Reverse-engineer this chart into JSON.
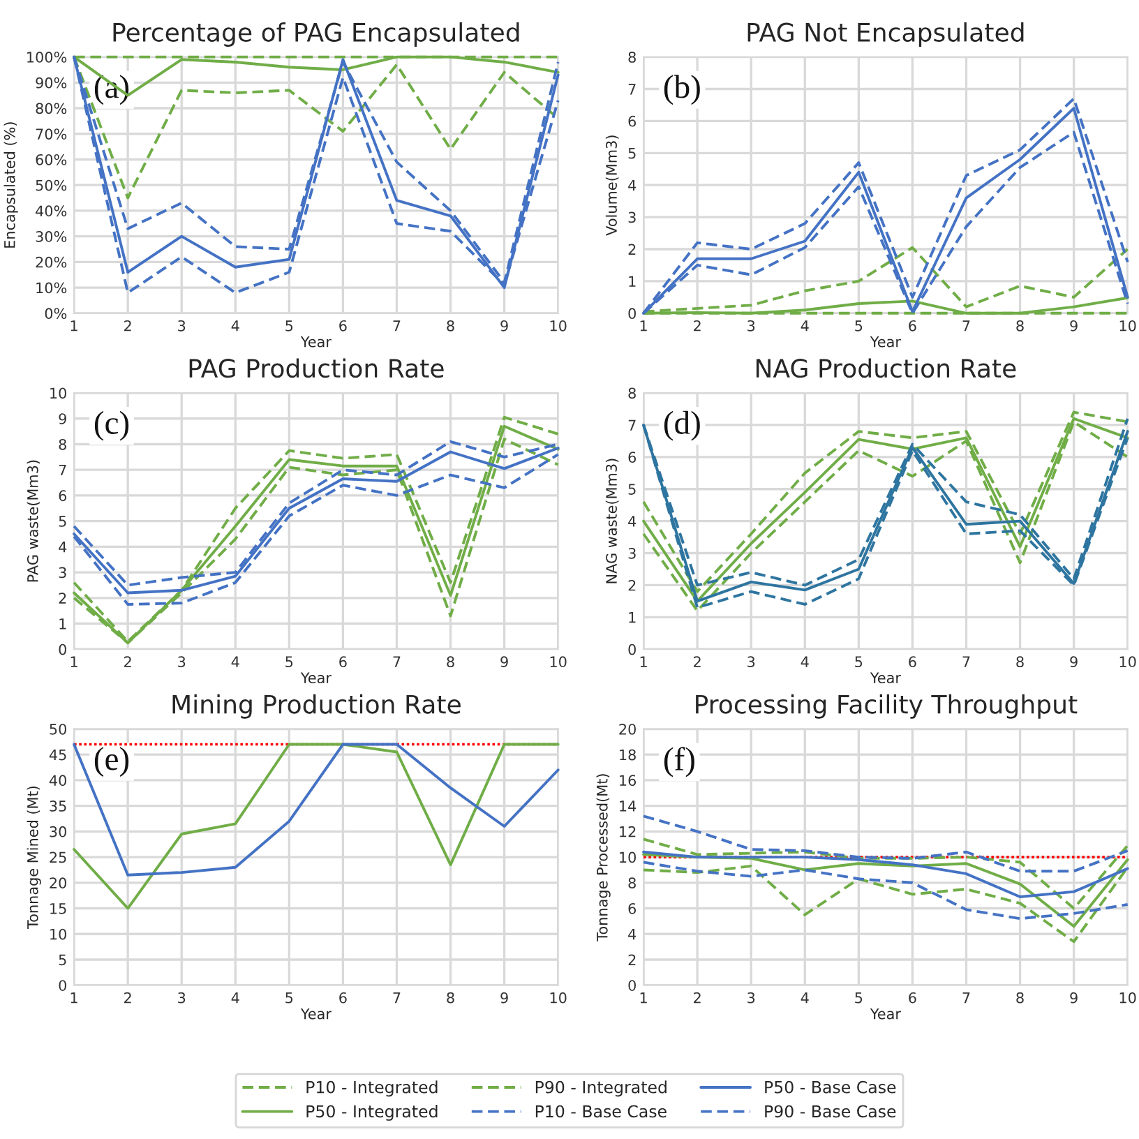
{
  "chart_data": [
    {
      "type": "line",
      "title": "Percentage of PAG Encapsulated",
      "xlabel": "Year",
      "ylabel": "Encapsulated (%)",
      "annotations": [
        "(a)"
      ],
      "x": [
        1,
        2,
        3,
        4,
        5,
        6,
        7,
        8,
        9,
        10
      ],
      "xlim": [
        1,
        10
      ],
      "xticks": [
        1,
        2,
        3,
        4,
        5,
        6,
        7,
        8,
        9,
        10
      ],
      "ylim": [
        0,
        100
      ],
      "yticks": [
        {
          "value": 0,
          "label": "0%"
        },
        {
          "value": 10,
          "label": "10%"
        },
        {
          "value": 20,
          "label": "20%"
        },
        {
          "value": 30,
          "label": "30%"
        },
        {
          "value": 40,
          "label": "40%"
        },
        {
          "value": 50,
          "label": "50%"
        },
        {
          "value": 60,
          "label": "60%"
        },
        {
          "value": 70,
          "label": "70%"
        },
        {
          "value": 80,
          "label": "80%"
        },
        {
          "value": 90,
          "label": "90%"
        },
        {
          "value": 100,
          "label": "100%"
        }
      ],
      "grid": true,
      "legend": "bottom",
      "series": [
        {
          "name": "P10 - Integrated",
          "color": "#70ad47",
          "line_style": "dashed",
          "values": [
            100,
            45,
            87,
            86,
            87,
            71,
            97,
            64,
            94,
            76
          ]
        },
        {
          "name": "P50 - Integrated",
          "color": "#70ad47",
          "line_style": "solid",
          "values": [
            100,
            85,
            99,
            98,
            96,
            95,
            100,
            100,
            98,
            94
          ]
        },
        {
          "name": "P90 - Integrated",
          "color": "#70ad47",
          "line_style": "dashed",
          "values": [
            100,
            100,
            100,
            100,
            100,
            100,
            100,
            100,
            100,
            100
          ]
        },
        {
          "name": "P10 - Base Case",
          "color": "#4472c4",
          "line_style": "dashed",
          "values": [
            100,
            8,
            22,
            8,
            16,
            92,
            35,
            32,
            11,
            83
          ]
        },
        {
          "name": "P50 - Base Case",
          "color": "#4472c4",
          "line_style": "solid",
          "values": [
            100,
            16,
            30,
            18,
            21,
            99,
            44,
            38,
            10,
            93
          ]
        },
        {
          "name": "P90 - Base Case",
          "color": "#4472c4",
          "line_style": "dashed",
          "values": [
            100,
            33,
            43,
            26,
            25,
            98,
            59,
            40,
            12,
            98
          ]
        }
      ]
    },
    {
      "type": "line",
      "title": "PAG Not Encapsulated",
      "xlabel": "Year",
      "ylabel": "Volume(Mm3)",
      "annotations": [
        "(b)"
      ],
      "x": [
        1,
        2,
        3,
        4,
        5,
        6,
        7,
        8,
        9,
        10
      ],
      "xlim": [
        1,
        10
      ],
      "xticks": [
        1,
        2,
        3,
        4,
        5,
        6,
        7,
        8,
        9,
        10
      ],
      "ylim": [
        0,
        8
      ],
      "yticks": [
        0,
        1,
        2,
        3,
        4,
        5,
        6,
        7,
        8
      ],
      "grid": true,
      "series": [
        {
          "color": "#70ad47",
          "line_style": "dashed",
          "values": [
            0.05,
            0.15,
            0.25,
            0.7,
            1.0,
            2.05,
            0.2,
            0.85,
            0.5,
            2.0
          ]
        },
        {
          "color": "#70ad47",
          "line_style": "solid",
          "values": [
            0,
            0.02,
            0,
            0.1,
            0.3,
            0.38,
            0,
            0,
            0.2,
            0.48
          ]
        },
        {
          "color": "#70ad47",
          "line_style": "dashed",
          "values": [
            0,
            0,
            0,
            0,
            0,
            0,
            0,
            0,
            0,
            0
          ]
        },
        {
          "color": "#4472c4",
          "line_style": "dashed",
          "values": [
            0,
            2.2,
            2.0,
            2.8,
            4.7,
            0.5,
            4.3,
            5.1,
            6.7,
            1.6
          ]
        },
        {
          "color": "#4472c4",
          "line_style": "solid",
          "values": [
            0,
            1.7,
            1.7,
            2.25,
            4.4,
            0.05,
            3.6,
            4.8,
            6.4,
            0.5
          ]
        },
        {
          "color": "#4472c4",
          "line_style": "dashed",
          "values": [
            0,
            1.5,
            1.2,
            2.05,
            3.95,
            0,
            2.7,
            4.55,
            5.65,
            0.3
          ]
        }
      ]
    },
    {
      "type": "line",
      "title": "PAG Production Rate",
      "xlabel": "Year",
      "ylabel": "PAG waste(Mm3)",
      "annotations": [
        "(c)"
      ],
      "x": [
        1,
        2,
        3,
        4,
        5,
        6,
        7,
        8,
        9,
        10
      ],
      "xlim": [
        1,
        10
      ],
      "xticks": [
        1,
        2,
        3,
        4,
        5,
        6,
        7,
        8,
        9,
        10
      ],
      "ylim": [
        0,
        10
      ],
      "yticks": [
        0,
        1,
        2,
        3,
        4,
        5,
        6,
        7,
        8,
        9,
        10
      ],
      "grid": true,
      "series": [
        {
          "color": "#70ad47",
          "line_style": "dashed",
          "values": [
            2.6,
            0.3,
            2.3,
            5.5,
            7.75,
            7.45,
            7.6,
            2.6,
            9.05,
            8.4
          ]
        },
        {
          "color": "#70ad47",
          "line_style": "solid",
          "values": [
            2.2,
            0.25,
            2.3,
            4.8,
            7.4,
            7.15,
            7.15,
            2.1,
            8.7,
            7.8
          ]
        },
        {
          "color": "#70ad47",
          "line_style": "dashed",
          "values": [
            2.0,
            0.25,
            2.2,
            4.3,
            7.1,
            6.8,
            7.0,
            1.3,
            8.2,
            7.2
          ]
        },
        {
          "color": "#4472c4",
          "line_style": "dashed",
          "values": [
            4.8,
            2.5,
            2.8,
            3.0,
            5.7,
            7.0,
            6.8,
            8.1,
            7.5,
            8.0
          ]
        },
        {
          "color": "#4472c4",
          "line_style": "solid",
          "values": [
            4.5,
            2.2,
            2.3,
            2.85,
            5.5,
            6.65,
            6.55,
            7.7,
            7.05,
            7.85
          ]
        },
        {
          "color": "#4472c4",
          "line_style": "dashed",
          "values": [
            4.4,
            1.75,
            1.8,
            2.6,
            5.2,
            6.4,
            6.0,
            6.8,
            6.3,
            7.6
          ]
        }
      ]
    },
    {
      "type": "line",
      "title": "NAG Production Rate",
      "xlabel": "Year",
      "ylabel": "NAG waste(Mm3)",
      "annotations": [
        "(d)"
      ],
      "x": [
        1,
        2,
        3,
        4,
        5,
        6,
        7,
        8,
        9,
        10
      ],
      "xlim": [
        1,
        10
      ],
      "xticks": [
        1,
        2,
        3,
        4,
        5,
        6,
        7,
        8,
        9,
        10
      ],
      "ylim": [
        0,
        8
      ],
      "yticks": [
        0,
        1,
        2,
        3,
        4,
        5,
        6,
        7,
        8
      ],
      "grid": true,
      "series": [
        {
          "color": "#70ad47",
          "line_style": "dashed",
          "values": [
            4.6,
            1.8,
            3.6,
            5.5,
            6.8,
            6.6,
            6.8,
            3.6,
            7.4,
            7.1
          ]
        },
        {
          "color": "#70ad47",
          "line_style": "solid",
          "values": [
            4.0,
            1.5,
            3.3,
            4.9,
            6.55,
            6.25,
            6.6,
            3.2,
            7.2,
            6.6
          ]
        },
        {
          "color": "#70ad47",
          "line_style": "dashed",
          "values": [
            3.6,
            1.2,
            3.0,
            4.6,
            6.2,
            5.4,
            6.5,
            2.7,
            7.1,
            6.0
          ]
        },
        {
          "color": "#2e75a0",
          "line_style": "dashed",
          "values": [
            7.0,
            2.0,
            2.4,
            2.0,
            2.8,
            6.4,
            4.6,
            4.2,
            2.2,
            7.2
          ]
        },
        {
          "color": "#2e75a0",
          "line_style": "solid",
          "values": [
            7.0,
            1.5,
            2.1,
            1.85,
            2.5,
            6.3,
            3.9,
            4.0,
            2.05,
            6.8
          ]
        },
        {
          "color": "#2e75a0",
          "line_style": "dashed",
          "values": [
            7.0,
            1.3,
            1.8,
            1.4,
            2.2,
            6.2,
            3.6,
            3.7,
            2.0,
            6.6
          ]
        }
      ]
    },
    {
      "type": "line",
      "title": "Mining Production Rate",
      "xlabel": "Year",
      "ylabel": "Tonnage Mined (Mt)",
      "annotations": [
        "(e)"
      ],
      "x": [
        1,
        2,
        3,
        4,
        5,
        6,
        7,
        8,
        9,
        10
      ],
      "xlim": [
        1,
        10
      ],
      "xticks": [
        1,
        2,
        3,
        4,
        5,
        6,
        7,
        8,
        9,
        10
      ],
      "ylim": [
        0,
        50
      ],
      "yticks": [
        0,
        5,
        10,
        15,
        20,
        25,
        30,
        35,
        40,
        45,
        50
      ],
      "grid": true,
      "ref_lines": [
        {
          "axis": "y",
          "value": 47,
          "color": "#ff0000",
          "line_style": "dotted"
        }
      ],
      "series": [
        {
          "color": "#70ad47",
          "line_style": "solid",
          "values": [
            26.5,
            15,
            29.5,
            31.5,
            47,
            47,
            45.5,
            23.5,
            47,
            47
          ]
        },
        {
          "color": "#4472c4",
          "line_style": "solid",
          "values": [
            47,
            21.5,
            22,
            23,
            32,
            47,
            47,
            38.5,
            31,
            42
          ]
        }
      ]
    },
    {
      "type": "line",
      "title": "Processing Facility Throughput",
      "xlabel": "Year",
      "ylabel": "Tonnage Processed(Mt)",
      "annotations": [
        "(f)"
      ],
      "x": [
        1,
        2,
        3,
        4,
        5,
        6,
        7,
        8,
        9,
        10
      ],
      "xlim": [
        1,
        10
      ],
      "xticks": [
        1,
        2,
        3,
        4,
        5,
        6,
        7,
        8,
        9,
        10
      ],
      "ylim": [
        0,
        20
      ],
      "yticks": [
        0,
        2,
        4,
        6,
        8,
        10,
        12,
        14,
        16,
        18,
        20
      ],
      "grid": true,
      "ref_lines": [
        {
          "axis": "y",
          "value": 10,
          "color": "#ff0000",
          "line_style": "dotted"
        }
      ],
      "series": [
        {
          "color": "#70ad47",
          "line_style": "dashed",
          "values": [
            11.4,
            10.2,
            10.3,
            10.4,
            9.9,
            9.9,
            10.0,
            9.6,
            6.0,
            10.9
          ]
        },
        {
          "color": "#70ad47",
          "line_style": "solid",
          "values": [
            10.2,
            10.0,
            9.9,
            9.0,
            9.5,
            9.3,
            9.5,
            7.9,
            4.6,
            9.8
          ]
        },
        {
          "color": "#70ad47",
          "line_style": "dashed",
          "values": [
            9.0,
            8.8,
            9.3,
            5.5,
            8.3,
            7.1,
            7.5,
            6.4,
            3.4,
            9.2
          ]
        },
        {
          "color": "#4472c4",
          "line_style": "dashed",
          "values": [
            13.2,
            12.0,
            10.6,
            10.5,
            10.0,
            9.9,
            10.4,
            8.9,
            8.9,
            10.5
          ]
        },
        {
          "color": "#4472c4",
          "line_style": "solid",
          "values": [
            10.4,
            10.0,
            10.0,
            10.0,
            9.8,
            9.4,
            8.7,
            6.9,
            7.3,
            9.1
          ]
        },
        {
          "color": "#4472c4",
          "line_style": "dashed",
          "values": [
            9.6,
            8.9,
            8.5,
            9.0,
            8.3,
            8.0,
            5.9,
            5.2,
            5.6,
            6.3
          ]
        }
      ]
    }
  ]
}
